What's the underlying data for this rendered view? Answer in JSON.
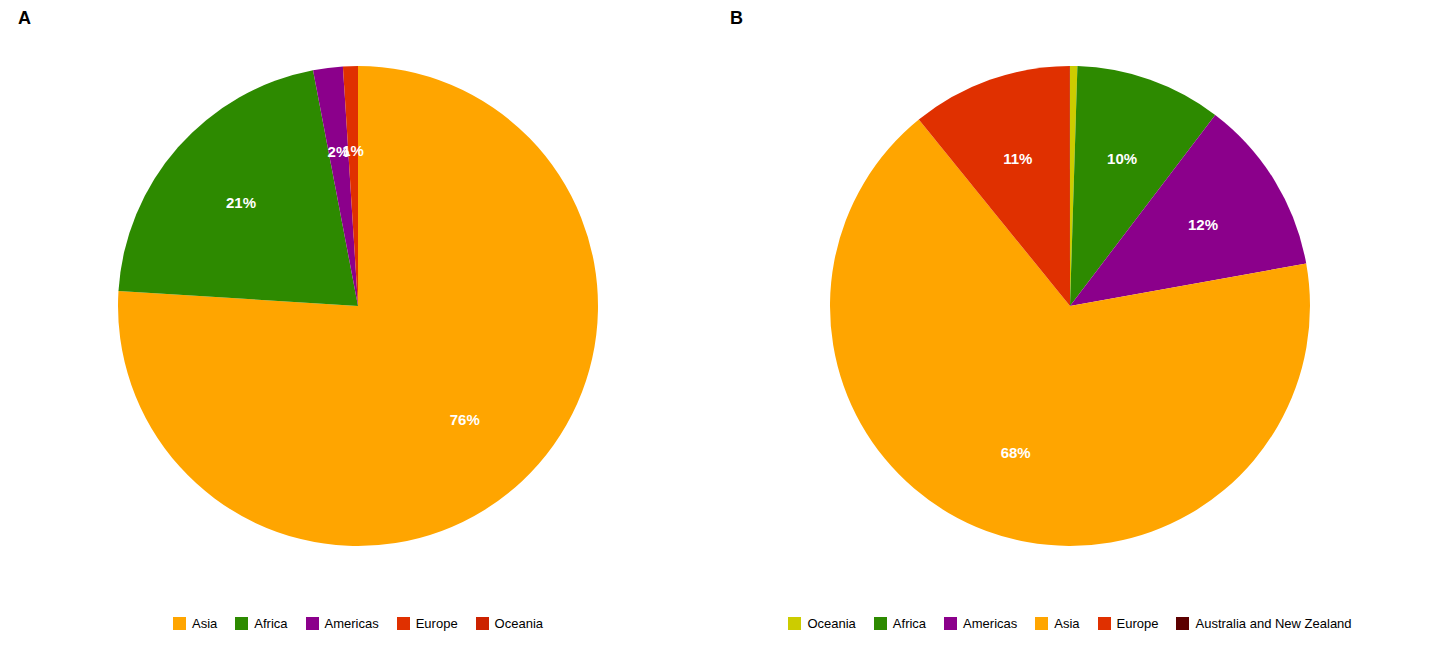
{
  "chart_data": [
    {
      "type": "pie",
      "title": "A",
      "categories": [
        "Asia",
        "Africa",
        "Americas",
        "Europe",
        "Oceania"
      ],
      "values": [
        76,
        21,
        2,
        1,
        0
      ],
      "value_labels": [
        "76%",
        "21%",
        "2%",
        "1%",
        null
      ],
      "colors": [
        "#ffa500",
        "#2d8a00",
        "#8b008b",
        "#e03000",
        "#cc2200"
      ],
      "data_labels": true,
      "legend": "bottom"
    },
    {
      "type": "pie",
      "title": "B",
      "categories": [
        "Oceania",
        "Africa",
        "Americas",
        "Asia",
        "Europe",
        "Australia and New Zealand"
      ],
      "values": [
        0.5,
        10,
        12,
        68,
        11,
        0.01
      ],
      "value_labels": [
        null,
        "10%",
        "12%",
        "68%",
        "11%",
        null
      ],
      "colors": [
        "#cccc00",
        "#2d8a00",
        "#8b008b",
        "#ffa500",
        "#e03000",
        "#5c0000"
      ],
      "data_labels": true,
      "legend": "bottom"
    }
  ]
}
